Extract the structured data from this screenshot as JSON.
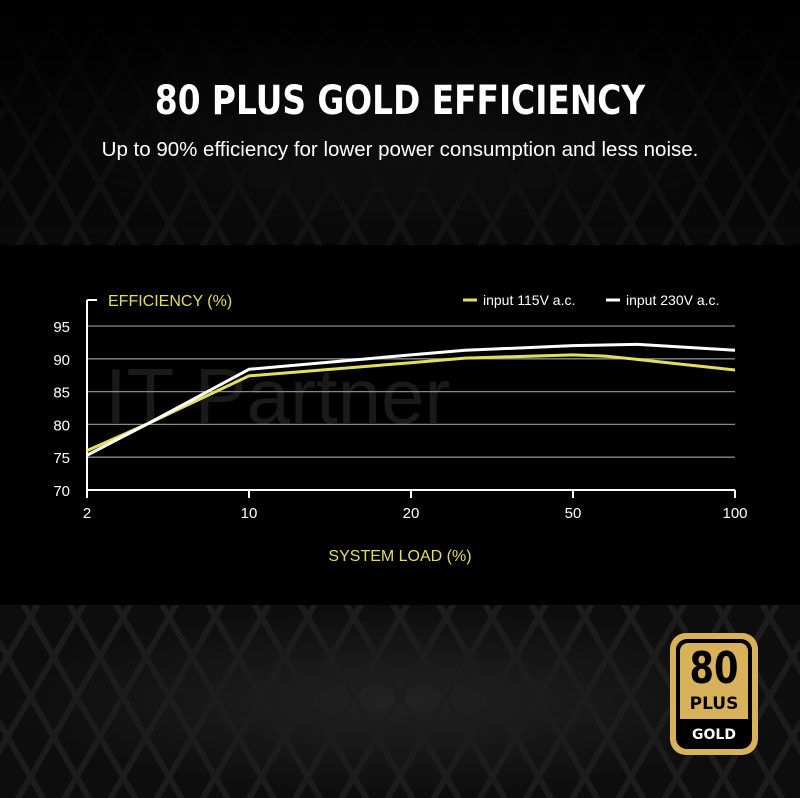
{
  "header": {
    "title": "80 PLUS GOLD EFFICIENCY",
    "subtitle": "Up to 90% efficiency for lower power consumption and less noise."
  },
  "watermark": "IT Partner",
  "badge": {
    "number": "80",
    "plus": "PLUS",
    "tier": "GOLD",
    "color": "#d8b25a"
  },
  "chart_data": {
    "type": "line",
    "ylabel": "EFFICIENCY (%)",
    "xlabel": "SYSTEM LOAD (%)",
    "x_ticks": [
      2,
      10,
      20,
      50,
      100
    ],
    "y_ticks": [
      70,
      75,
      80,
      85,
      90,
      95
    ],
    "ylim": [
      70,
      95
    ],
    "xlim": [
      2,
      100
    ],
    "grid": true,
    "legend_position": "top-right",
    "series": [
      {
        "name": "input 115V a.c.",
        "color": "#e3df5c",
        "x": [
          2,
          5,
          10,
          20,
          30,
          50,
          60,
          70,
          100
        ],
        "y": [
          76.0,
          80.1,
          87.4,
          89.4,
          90.1,
          90.6,
          90.4,
          89.9,
          88.3
        ]
      },
      {
        "name": "input 230V a.c.",
        "color": "#ffffff",
        "x": [
          2,
          5,
          10,
          20,
          30,
          50,
          70,
          100
        ],
        "y": [
          75.3,
          80.1,
          88.4,
          90.6,
          91.3,
          92.0,
          92.2,
          91.3
        ]
      }
    ]
  }
}
